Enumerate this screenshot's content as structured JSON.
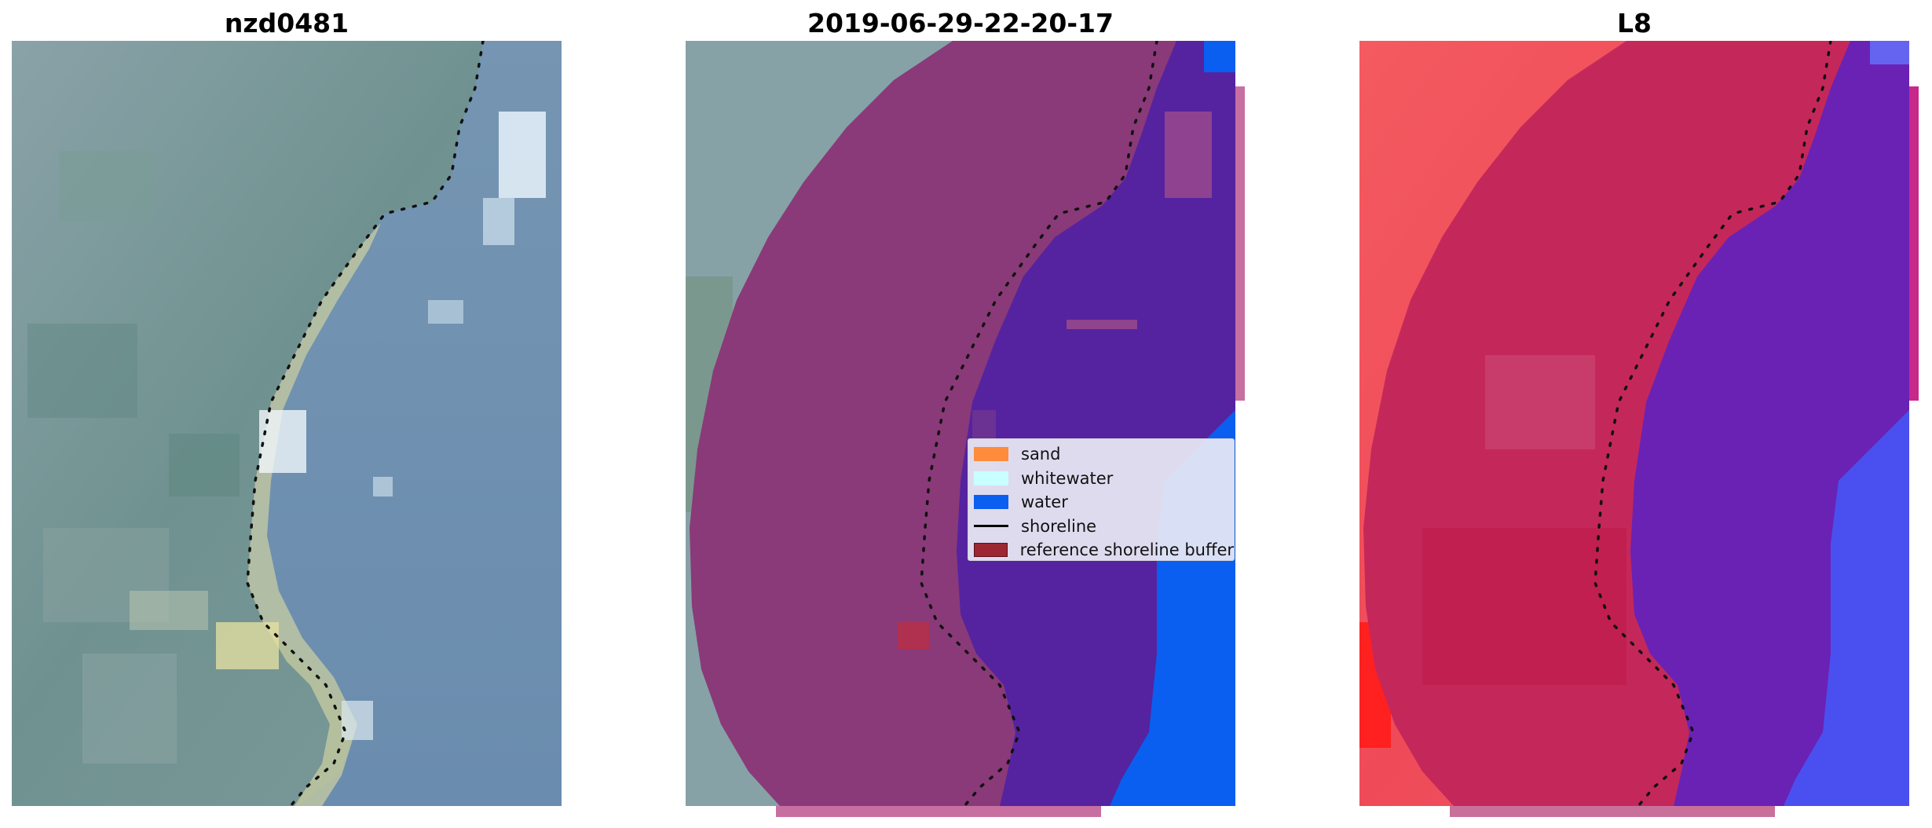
{
  "panels": [
    {
      "title": "nzd0481"
    },
    {
      "title": "2019-06-29-22-20-17"
    },
    {
      "title": "L8"
    }
  ],
  "legend": {
    "items": [
      {
        "label": "sand",
        "color": "#ff8c3c",
        "kind": "patch"
      },
      {
        "label": "whitewater",
        "color": "#c8ffff",
        "kind": "patch"
      },
      {
        "label": "water",
        "color": "#0a5ff0",
        "kind": "patch"
      },
      {
        "label": "shoreline",
        "color": "#000000",
        "kind": "line"
      },
      {
        "label": "reference shoreline buffer",
        "color": "#9c2733",
        "kind": "patch"
      }
    ]
  },
  "colors": {
    "land": "#6a8e8f",
    "water_rgb": "#6a8cb0",
    "buffer": "#8a3a78",
    "water_class": "#5523a0",
    "water_outside": "#0a5ff0",
    "index_land": "#f24855",
    "index_buffer": "#c02a5e",
    "index_water": "#6a22b4",
    "index_water_outside": "#4a50f0"
  }
}
